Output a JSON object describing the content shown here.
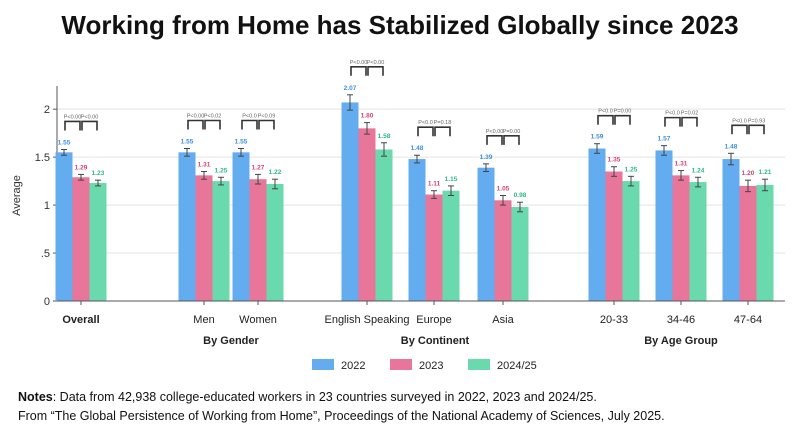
{
  "title": "Working from Home has Stabilized Globally since 2023",
  "notes": {
    "label": "Notes",
    "line1": ": Data from 42,938 college-educated workers in 23 countries surveyed in 2022, 2023 and 2024/25.",
    "line2": "From “The Global Persistence of Working from Home”, Proceedings of the National Academy of Sciences, July 2025."
  },
  "colors": {
    "y2022": "#63acef",
    "y2023": "#e8769a",
    "y2024": "#6ad9ad",
    "errorbar": "#444444",
    "bracket": "#333333"
  },
  "chart_data": {
    "type": "bar",
    "ylabel": "Average",
    "ylim": [
      0,
      2.2
    ],
    "yticks": [
      "0",
      ".5",
      "1",
      "1.5",
      "2"
    ],
    "grid": true,
    "legend_position": "bottom",
    "series": [
      {
        "name": "2022",
        "colorKey": "y2022"
      },
      {
        "name": "2023",
        "colorKey": "y2023"
      },
      {
        "name": "2024/25",
        "colorKey": "y2024"
      }
    ],
    "groups": [
      {
        "label": "Overall",
        "bold": true,
        "values": [
          1.55,
          1.29,
          1.23
        ],
        "labels": [
          "1.55",
          "1.29",
          "1.23"
        ],
        "pvalues": [
          "P<0.00",
          "P<0.00"
        ]
      },
      {
        "label": "Men",
        "values": [
          1.55,
          1.31,
          1.25
        ],
        "labels": [
          "1.55",
          "1.31",
          "1.25"
        ],
        "pvalues": [
          "P<0.00",
          "P<0.02"
        ]
      },
      {
        "label": "Women",
        "values": [
          1.55,
          1.27,
          1.22
        ],
        "labels": [
          "1.55",
          "1.27",
          "1.22"
        ],
        "pvalues": [
          "P<0.0",
          "P<0.09"
        ]
      },
      {
        "label": "English Speaking",
        "values": [
          2.07,
          1.8,
          1.58
        ],
        "labels": [
          "2.07",
          "1.80",
          "1.58"
        ],
        "pvalues": [
          "P<0.00",
          "P<0.00"
        ]
      },
      {
        "label": "Europe",
        "values": [
          1.48,
          1.11,
          1.15
        ],
        "labels": [
          "1.48",
          "1.11",
          "1.15"
        ],
        "pvalues": [
          "P<0.0",
          "P=0.18"
        ]
      },
      {
        "label": "Asia",
        "values": [
          1.39,
          1.05,
          0.98
        ],
        "labels": [
          "1.39",
          "1.05",
          "0.98"
        ],
        "pvalues": [
          "P<0.00",
          "P=0.00"
        ]
      },
      {
        "label": "20-33",
        "values": [
          1.59,
          1.35,
          1.25
        ],
        "labels": [
          "1.59",
          "1.35",
          "1.25"
        ],
        "pvalues": [
          "P<0.0",
          "P=0.00"
        ]
      },
      {
        "label": "34-46",
        "values": [
          1.57,
          1.31,
          1.24
        ],
        "labels": [
          "1.57",
          "1.31",
          "1.24"
        ],
        "pvalues": [
          "P<0.0",
          "P=0.02"
        ]
      },
      {
        "label": "47-64",
        "values": [
          1.48,
          1.2,
          1.21
        ],
        "labels": [
          "1.48",
          "1.20",
          "1.21"
        ],
        "pvalues": [
          "P<0.0",
          "P=0.93"
        ]
      }
    ],
    "errors": [
      [
        0.03,
        0.03,
        0.03
      ],
      [
        0.04,
        0.04,
        0.04
      ],
      [
        0.04,
        0.05,
        0.05
      ],
      [
        0.08,
        0.06,
        0.07
      ],
      [
        0.04,
        0.04,
        0.05
      ],
      [
        0.04,
        0.05,
        0.05
      ],
      [
        0.05,
        0.05,
        0.05
      ],
      [
        0.05,
        0.05,
        0.05
      ],
      [
        0.06,
        0.06,
        0.06
      ]
    ],
    "categories_headers": [
      {
        "label": "By Gender",
        "groups": [
          1,
          2
        ]
      },
      {
        "label": "By Continent",
        "groups": [
          3,
          4,
          5
        ]
      },
      {
        "label": "By Age Group",
        "groups": [
          6,
          7,
          8
        ]
      }
    ]
  }
}
